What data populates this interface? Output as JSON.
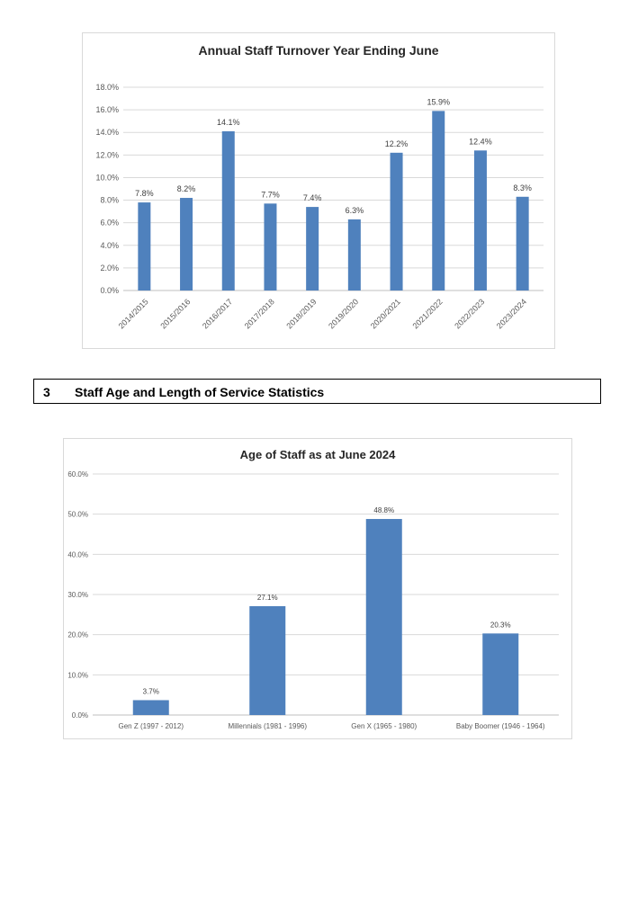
{
  "section": {
    "number": "3",
    "title": "Staff Age and Length of Service Statistics"
  },
  "chart_data": [
    {
      "type": "bar",
      "title": "Annual Staff Turnover Year Ending June",
      "categories": [
        "2014/2015",
        "2015/2016",
        "2016/2017",
        "2017/2018",
        "2018/2019",
        "2019/2020",
        "2020/2021",
        "2021/2022",
        "2022/2023",
        "2023/2024"
      ],
      "values": [
        7.8,
        8.2,
        14.1,
        7.7,
        7.4,
        6.3,
        12.2,
        15.9,
        12.4,
        8.3
      ],
      "data_labels": [
        "7.8%",
        "8.2%",
        "14.1%",
        "7.7%",
        "7.4%",
        "6.3%",
        "12.2%",
        "15.9%",
        "12.4%",
        "8.3%"
      ],
      "y_ticks": [
        0,
        2,
        4,
        6,
        8,
        10,
        12,
        14,
        16,
        18
      ],
      "y_tick_labels": [
        "0.0%",
        "2.0%",
        "4.0%",
        "6.0%",
        "8.0%",
        "10.0%",
        "12.0%",
        "14.0%",
        "16.0%",
        "18.0%"
      ],
      "ylim": [
        0,
        18
      ],
      "xlabel": "",
      "ylabel": "",
      "grid": true,
      "legend": "none",
      "bar_color": "#4F81BD"
    },
    {
      "type": "bar",
      "title": "Age of Staff as at June 2024",
      "categories": [
        "Gen Z (1997 - 2012)",
        "Millennials (1981 - 1996)",
        "Gen X (1965 - 1980)",
        "Baby Boomer (1946 - 1964)"
      ],
      "values": [
        3.7,
        27.1,
        48.8,
        20.3
      ],
      "data_labels": [
        "3.7%",
        "27.1%",
        "48.8%",
        "20.3%"
      ],
      "y_ticks": [
        0,
        10,
        20,
        30,
        40,
        50,
        60
      ],
      "y_tick_labels": [
        "0.0%",
        "10.0%",
        "20.0%",
        "30.0%",
        "40.0%",
        "50.0%",
        "60.0%"
      ],
      "ylim": [
        0,
        60
      ],
      "xlabel": "",
      "ylabel": "",
      "grid": true,
      "legend": "none",
      "bar_color": "#4F81BD"
    }
  ]
}
